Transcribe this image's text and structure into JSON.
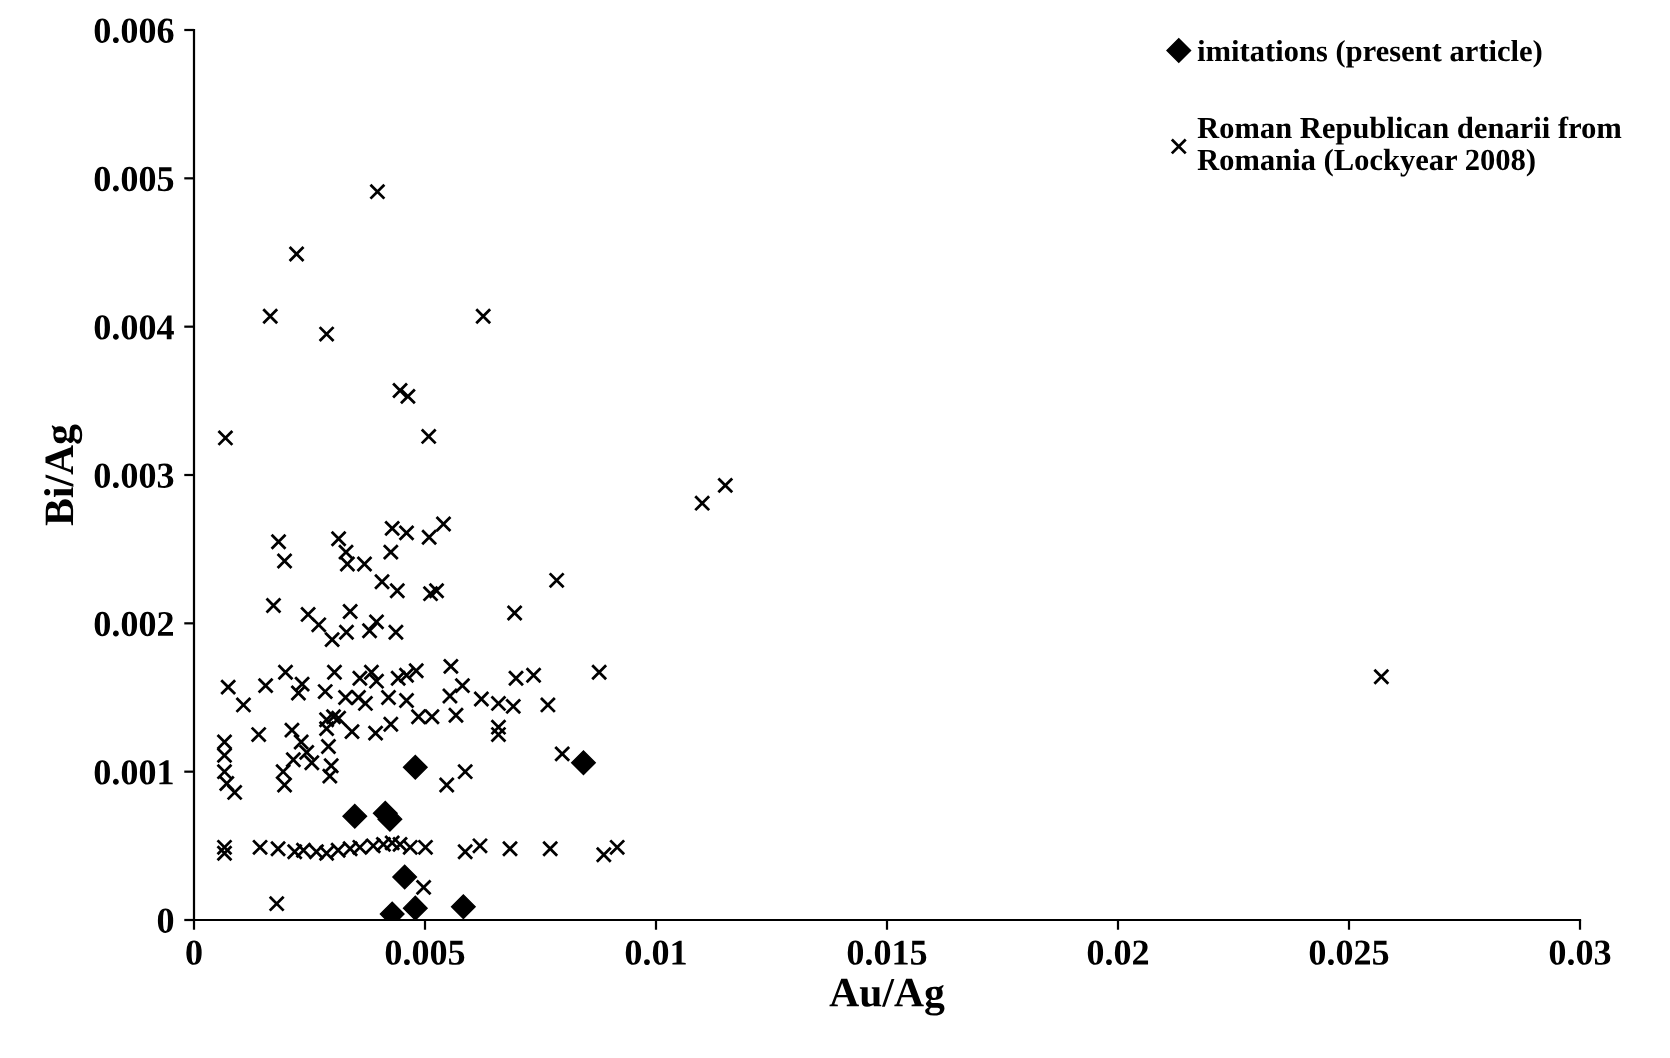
{
  "chart_data": {
    "type": "scatter",
    "xlabel": "Au/Ag",
    "ylabel": "Bi/Ag",
    "xlim": [
      0,
      0.03
    ],
    "ylim": [
      0,
      0.006
    ],
    "xticks": [
      0,
      0.005,
      0.01,
      0.015,
      0.02,
      0.025,
      0.03
    ],
    "yticks": [
      0,
      0.001,
      0.002,
      0.003,
      0.004,
      0.005,
      0.006
    ],
    "grid": false,
    "legend": "top right",
    "series": [
      {
        "name": "imitations (present article)",
        "color": "#000000",
        "marker": "diamond",
        "x": [
          0.00348,
          0.00414,
          0.00424,
          0.00479,
          0.00843,
          0.00456,
          0.00429,
          0.00479,
          0.00583
        ],
        "values": [
          0.0007,
          0.00072,
          0.00068,
          0.00103,
          0.00106,
          0.00029,
          4e-05,
          8e-05,
          9e-05
        ]
      },
      {
        "name": "Roman Republican denarii from\nRomania (Lockyear 2008)",
        "color": "#000000",
        "marker": "cross",
        "x": [
          0.00068,
          0.00165,
          0.00222,
          0.00287,
          0.00397,
          0.00446,
          0.00463,
          0.00508,
          0.00626,
          0.011,
          0.0115,
          0.0257,
          0.00183,
          0.00196,
          0.00313,
          0.00329,
          0.00332,
          0.00369,
          0.00429,
          0.0046,
          0.00426,
          0.00509,
          0.0054,
          0.00407,
          0.0044,
          0.00512,
          0.00525,
          0.00785,
          0.00172,
          0.00247,
          0.0027,
          0.00299,
          0.00338,
          0.0033,
          0.0038,
          0.00395,
          0.00437,
          0.00694,
          0.00074,
          0.00107,
          0.00155,
          0.00198,
          0.00234,
          0.00226,
          0.00284,
          0.00304,
          0.00328,
          0.00359,
          0.00384,
          0.00395,
          0.00356,
          0.00371,
          0.00442,
          0.0046,
          0.00481,
          0.00421,
          0.0046,
          0.00556,
          0.00554,
          0.00581,
          0.00622,
          0.00659,
          0.00691,
          0.00697,
          0.00735,
          0.00766,
          0.00877,
          0.00486,
          0.00515,
          0.00567,
          0.00659,
          0.00659,
          0.00393,
          0.00426,
          0.00342,
          0.00287,
          0.00302,
          0.00287,
          0.00313,
          0.00212,
          0.00232,
          0.00244,
          0.00215,
          0.00255,
          0.00291,
          0.00297,
          0.0014,
          0.00066,
          0.00066,
          0.00066,
          0.00071,
          0.00088,
          0.00193,
          0.00196,
          0.00294,
          0.00547,
          0.00587,
          0.00797,
          0.00066,
          0.00066,
          0.00143,
          0.00182,
          0.00218,
          0.00237,
          0.00265,
          0.00287,
          0.00312,
          0.00338,
          0.00359,
          0.00388,
          0.0041,
          0.00429,
          0.00446,
          0.00468,
          0.00501,
          0.00587,
          0.00619,
          0.00684,
          0.00771,
          0.00887,
          0.00916,
          0.00497,
          0.00179
        ],
        "values": [
          0.00325,
          0.00407,
          0.00449,
          0.00395,
          0.00491,
          0.00357,
          0.00353,
          0.00326,
          0.00407,
          0.00281,
          0.00293,
          0.00164,
          0.00255,
          0.00242,
          0.00257,
          0.00248,
          0.0024,
          0.0024,
          0.00264,
          0.00261,
          0.00248,
          0.00258,
          0.00267,
          0.00228,
          0.00222,
          0.0022,
          0.00222,
          0.00229,
          0.00212,
          0.00206,
          0.00199,
          0.00189,
          0.00208,
          0.00194,
          0.00195,
          0.00201,
          0.00194,
          0.00207,
          0.00157,
          0.00145,
          0.00158,
          0.00167,
          0.00159,
          0.00153,
          0.00154,
          0.00167,
          0.0015,
          0.00163,
          0.00167,
          0.00161,
          0.0015,
          0.00146,
          0.00163,
          0.00165,
          0.00168,
          0.0015,
          0.00148,
          0.00171,
          0.00151,
          0.00158,
          0.00149,
          0.00146,
          0.00144,
          0.00163,
          0.00165,
          0.00145,
          0.00167,
          0.00137,
          0.00137,
          0.00138,
          0.0013,
          0.00125,
          0.00126,
          0.00132,
          0.00127,
          0.00135,
          0.00137,
          0.00129,
          0.00136,
          0.00128,
          0.0012,
          0.00113,
          0.00108,
          0.00106,
          0.00117,
          0.00104,
          0.00125,
          0.0012,
          0.00111,
          0.001,
          0.00092,
          0.00086,
          0.001,
          0.00091,
          0.00097,
          0.00091,
          0.001,
          0.00112,
          0.00049,
          0.00045,
          0.00049,
          0.00048,
          0.00046,
          0.00047,
          0.00046,
          0.00045,
          0.00047,
          0.00048,
          0.00049,
          0.0005,
          0.00051,
          0.00052,
          0.00051,
          0.00049,
          0.00049,
          0.00046,
          0.0005,
          0.00048,
          0.00048,
          0.00044,
          0.00049,
          0.00022,
          0.00011
        ]
      }
    ]
  }
}
